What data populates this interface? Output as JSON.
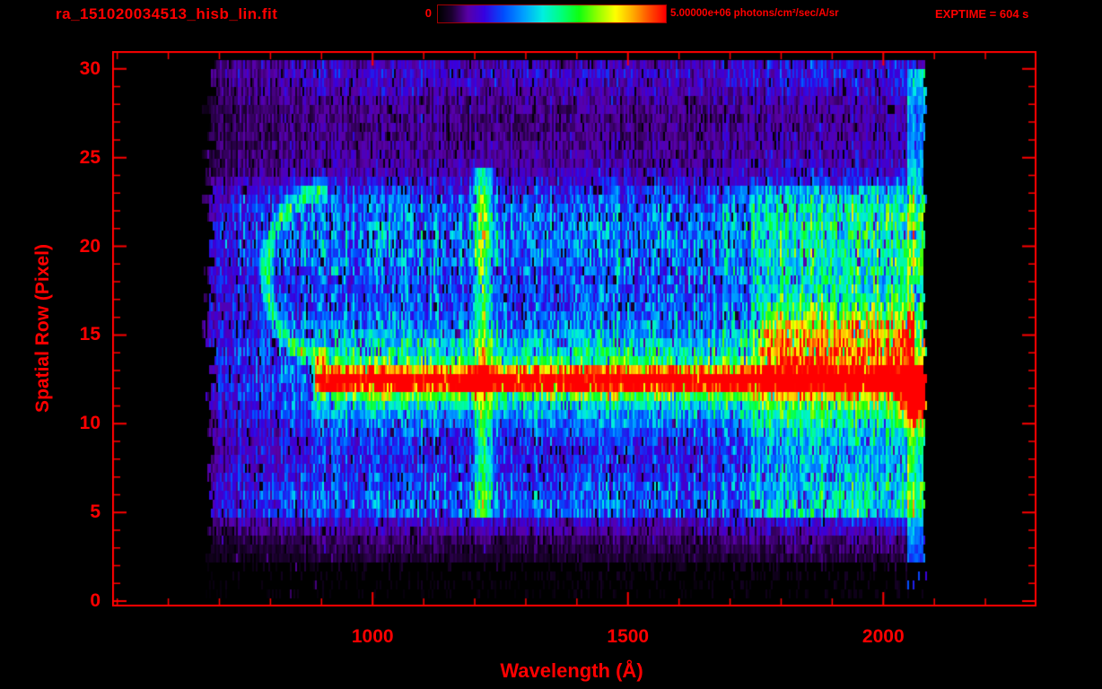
{
  "colors": {
    "accent": "#ff0000",
    "background": "#000000"
  },
  "chart_data": {
    "type": "heatmap",
    "title": "ra_151020034513_hisb_lin.fit",
    "xlabel": "Wavelength (Å)",
    "ylabel": "Spatial Row (Pixel)",
    "exptime_label": "EXPTIME = 604 s",
    "colorbar": {
      "min_label": "0",
      "max_label": "5.00000e+06 photons/cm²/sec/A/sr",
      "min_value": 0,
      "max_value": 5000000,
      "units": "photons/cm²/sec/A/sr",
      "colormap": "rainbow"
    },
    "xlim": [
      490,
      2300
    ],
    "ylim": [
      -0.3,
      31
    ],
    "x_major_ticks": [
      1000,
      1500,
      2000
    ],
    "x_minor_step": 100,
    "y_major_ticks": [
      0,
      5,
      10,
      15,
      20,
      25,
      30
    ],
    "y_minor_step": 1,
    "grid": false,
    "data_extent": {
      "wavelength_min": 665,
      "wavelength_max": 2085,
      "row_min": 0,
      "row_max": 30.25
    },
    "colormap_stops": [
      {
        "pos": 0.0,
        "color": "#000000"
      },
      {
        "pos": 0.06,
        "color": "#1c0030"
      },
      {
        "pos": 0.13,
        "color": "#5a00a8"
      },
      {
        "pos": 0.2,
        "color": "#3700e0"
      },
      {
        "pos": 0.29,
        "color": "#0050ff"
      },
      {
        "pos": 0.38,
        "color": "#00a4ff"
      },
      {
        "pos": 0.46,
        "color": "#00f0e0"
      },
      {
        "pos": 0.54,
        "color": "#00ff80"
      },
      {
        "pos": 0.62,
        "color": "#10ff10"
      },
      {
        "pos": 0.7,
        "color": "#90ff00"
      },
      {
        "pos": 0.78,
        "color": "#ffff00"
      },
      {
        "pos": 0.86,
        "color": "#ffa800"
      },
      {
        "pos": 0.93,
        "color": "#ff4e00"
      },
      {
        "pos": 1.0,
        "color": "#ff0000"
      }
    ],
    "row_profile": [
      [
        0,
        0.02
      ],
      [
        1.5,
        0.03
      ],
      [
        2.5,
        0.06
      ],
      [
        3.5,
        0.09
      ],
      [
        4.5,
        0.18
      ],
      [
        5,
        0.3
      ],
      [
        6,
        0.3
      ],
      [
        7,
        0.26
      ],
      [
        8,
        0.23
      ],
      [
        9,
        0.23
      ],
      [
        10,
        0.26
      ],
      [
        11,
        0.3
      ],
      [
        12,
        0.32
      ],
      [
        13,
        0.32
      ],
      [
        14,
        0.34
      ],
      [
        15,
        0.33
      ],
      [
        16,
        0.3
      ],
      [
        17,
        0.29
      ],
      [
        18,
        0.29
      ],
      [
        19,
        0.33
      ],
      [
        20,
        0.34
      ],
      [
        21,
        0.34
      ],
      [
        22,
        0.32
      ],
      [
        23,
        0.26
      ],
      [
        24,
        0.16
      ],
      [
        25,
        0.13
      ],
      [
        26,
        0.12
      ],
      [
        27,
        0.11
      ],
      [
        28,
        0.12
      ],
      [
        29,
        0.16
      ],
      [
        30,
        0.19
      ],
      [
        30.3,
        0.15
      ]
    ],
    "wavelength_profile": [
      [
        665,
        0.3
      ],
      [
        690,
        0.55
      ],
      [
        720,
        0.7
      ],
      [
        780,
        0.8
      ],
      [
        850,
        0.9
      ],
      [
        950,
        1.0
      ],
      [
        1600,
        1.0
      ],
      [
        1700,
        1.05
      ],
      [
        1780,
        1.15
      ],
      [
        1850,
        1.2
      ],
      [
        1950,
        1.25
      ],
      [
        2030,
        1.2
      ],
      [
        2050,
        1.15
      ],
      [
        2085,
        1.05
      ]
    ],
    "features": [
      {
        "name": "stellar-continuum-stripe",
        "type": "horizontal-gaussian",
        "row_center": 12.45,
        "row_sigma": 0.5,
        "amplitude": 0.72,
        "wavelength_range": [
          888,
          2085
        ]
      },
      {
        "name": "continuum-wings",
        "type": "horizontal-gaussian",
        "row_center": 12.5,
        "row_sigma": 1.7,
        "amplitude": 0.22,
        "wavelength_range": [
          888,
          2085
        ]
      },
      {
        "name": "lyman-alpha-airglow",
        "type": "vertical-gaussian",
        "wavelength_center": 1216,
        "wavelength_sigma": 11,
        "amplitude": 0.34,
        "row_range": [
          4.8,
          24.2
        ]
      },
      {
        "name": "lyman-alpha-lower-knot",
        "type": "blob",
        "wavelength_center": 1216,
        "wavelength_sigma": 13,
        "row_center": 5.8,
        "row_sigma": 1.2,
        "amplitude": 0.12
      },
      {
        "name": "lyman-alpha-upper-knot",
        "type": "blob",
        "wavelength_center": 1216,
        "wavelength_sigma": 13,
        "row_center": 21.5,
        "row_sigma": 2.2,
        "amplitude": 0.1
      },
      {
        "name": "left-arc",
        "type": "arc",
        "wavelength_center": 905,
        "row_center": 18.4,
        "wavelength_radius": 112,
        "row_radius": 4.7,
        "thickness": 0.17,
        "amplitude": 0.33,
        "side": "left"
      },
      {
        "name": "red-band-right",
        "type": "horizontal-gaussian",
        "row_center": 14.9,
        "row_sigma": 1.3,
        "amplitude": 0.3,
        "wavelength_range": [
          1760,
          2062
        ]
      },
      {
        "name": "right-bright-region",
        "type": "region-boost",
        "wavelength_range": [
          1740,
          2062
        ],
        "row_range": [
          4.5,
          23.5
        ],
        "amplitude": 0.1
      },
      {
        "name": "right-edge-airglow-column",
        "type": "column",
        "wavelength_range": [
          2048,
          2085
        ],
        "row_range": [
          0.6,
          30.2
        ],
        "amplitude": 0.22
      },
      {
        "name": "right-edge-red-knot",
        "type": "blob",
        "wavelength_center": 2062,
        "wavelength_sigma": 18,
        "row_center": 11.4,
        "row_sigma": 0.9,
        "amplitude": 0.65
      }
    ],
    "noise": {
      "column_amp": 0.52,
      "pixel_amp": 0.84,
      "speckle_prob": 0.05,
      "seed": 42
    }
  }
}
